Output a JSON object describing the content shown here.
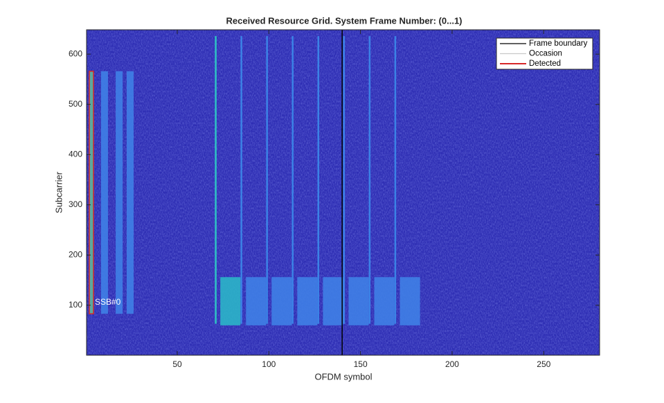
{
  "chart_data": {
    "type": "image",
    "title": "Received Resource Grid. System Frame Number: (0...1)",
    "xlabel": "OFDM symbol",
    "ylabel": "Subcarrier",
    "xlim": [
      0.5,
      280.5
    ],
    "ylim": [
      0.5,
      648.5
    ],
    "xticks": [
      50,
      100,
      150,
      200,
      250
    ],
    "yticks": [
      100,
      200,
      300,
      400,
      500,
      600
    ],
    "background": "#2e2eb4",
    "regions": [
      {
        "x": [
          2,
          4.3
        ],
        "y": [
          83,
          566
        ],
        "color": "#5fb59a"
      },
      {
        "x": [
          8.4,
          12.2
        ],
        "y": [
          83,
          566
        ],
        "color": "#3f7fe6"
      },
      {
        "x": [
          16.4,
          20.2
        ],
        "y": [
          83,
          566
        ],
        "color": "#3f7fe6"
      },
      {
        "x": [
          22.4,
          26.2
        ],
        "y": [
          83,
          566
        ],
        "color": "#3f7fe6"
      },
      {
        "x": [
          73.5,
          84.5
        ],
        "y": [
          60,
          156
        ],
        "color": "#2bb5c8"
      },
      {
        "x": [
          87.5,
          98.5
        ],
        "y": [
          60,
          156
        ],
        "color": "#3f7fe6"
      },
      {
        "x": [
          101.5,
          112.5
        ],
        "y": [
          60,
          156
        ],
        "color": "#3f7fe6"
      },
      {
        "x": [
          115.5,
          126.5
        ],
        "y": [
          60,
          156
        ],
        "color": "#3f7fe6"
      },
      {
        "x": [
          129.5,
          140.5
        ],
        "y": [
          60,
          156
        ],
        "color": "#3f7fe6"
      },
      {
        "x": [
          143.5,
          154.5
        ],
        "y": [
          60,
          156
        ],
        "color": "#3f7fe6"
      },
      {
        "x": [
          157.5,
          168.5
        ],
        "y": [
          60,
          156
        ],
        "color": "#3f7fe6"
      },
      {
        "x": [
          171.5,
          182.5
        ],
        "y": [
          60,
          156
        ],
        "color": "#3f7fe6"
      }
    ],
    "lines": [
      {
        "x": 71,
        "y": [
          63,
          636
        ],
        "color": "#2ec4c4"
      },
      {
        "x": 85,
        "y": [
          63,
          636
        ],
        "color": "#3b82e6"
      },
      {
        "x": 99,
        "y": [
          63,
          636
        ],
        "color": "#3b82e6"
      },
      {
        "x": 113,
        "y": [
          63,
          636
        ],
        "color": "#3b82e6"
      },
      {
        "x": 127,
        "y": [
          63,
          636
        ],
        "color": "#3b82e6"
      },
      {
        "x": 141,
        "y": [
          63,
          636
        ],
        "color": "#3b82e6"
      },
      {
        "x": 155,
        "y": [
          63,
          636
        ],
        "color": "#3b82e6"
      },
      {
        "x": 169,
        "y": [
          63,
          636
        ],
        "color": "#3b82e6"
      }
    ],
    "series": [
      {
        "name": "Frame boundary",
        "color": "#000000",
        "x": 140
      },
      {
        "name": "Occasion",
        "color": "#c8c8c8"
      },
      {
        "name": "Detected",
        "color": "#d62728",
        "x": [
          2,
          4.3
        ],
        "y": [
          83,
          566
        ]
      }
    ],
    "annotation": "SSB#0"
  }
}
